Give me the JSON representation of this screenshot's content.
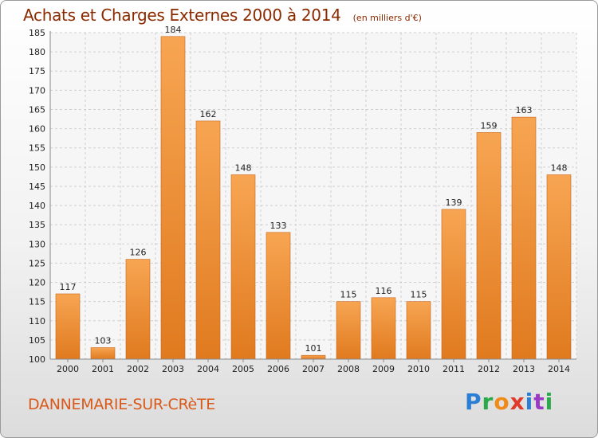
{
  "header": {
    "title": "Achats et Charges Externes 2000 à 2014",
    "unit": "(en milliers d'€)"
  },
  "footer": {
    "town": "DANNEMARIE-SUR-CRèTE",
    "logo": "Proxiti",
    "logo_colors": [
      "#2a7fd4",
      "#2aa84a",
      "#f08a1a",
      "#e03a2a",
      "#2a7fd4",
      "#9a3ac4",
      "#2aa84a"
    ]
  },
  "colors": {
    "bar_light": "#f7a552",
    "bar_dark": "#e07a1f",
    "bar_edge": "#c9661a",
    "grid": "#cfcfcf",
    "axis_text": "#222222",
    "title": "#8a2a00"
  },
  "chart_data": {
    "type": "bar",
    "categories": [
      "2000",
      "2001",
      "2002",
      "2003",
      "2004",
      "2005",
      "2006",
      "2007",
      "2008",
      "2009",
      "2010",
      "2011",
      "2012",
      "2013",
      "2014"
    ],
    "values": [
      117,
      103,
      126,
      184,
      162,
      148,
      133,
      101,
      115,
      116,
      115,
      139,
      159,
      163,
      148
    ],
    "title": "Achats et Charges Externes 2000 à 2014",
    "xlabel": "",
    "ylabel": "",
    "ylim": [
      100,
      185
    ],
    "yticks": [
      100,
      105,
      110,
      115,
      120,
      125,
      130,
      135,
      140,
      145,
      150,
      155,
      160,
      165,
      170,
      175,
      180,
      185
    ],
    "grid": true,
    "data_labels": true
  }
}
